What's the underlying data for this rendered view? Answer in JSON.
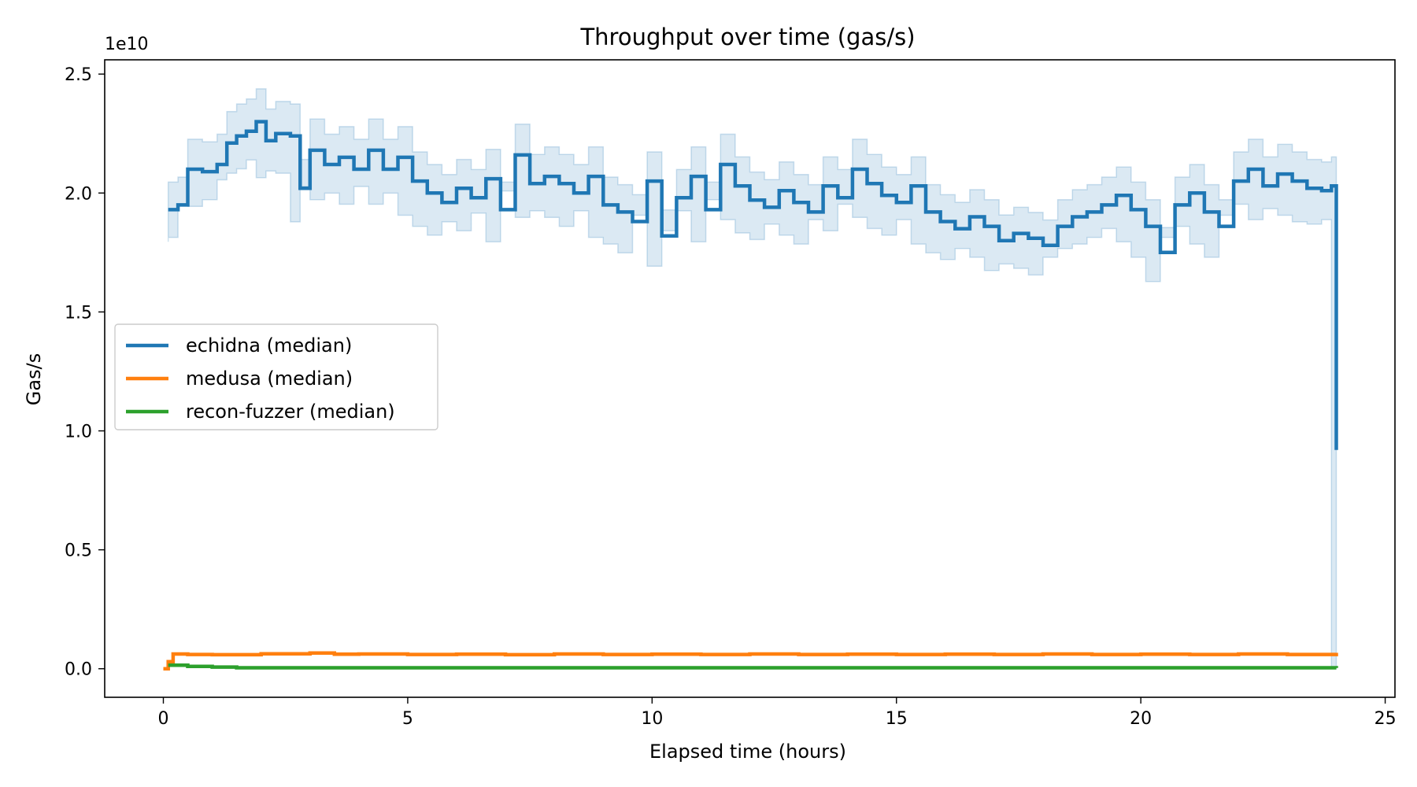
{
  "chart_data": {
    "type": "line",
    "title": "Throughput over time (gas/s)",
    "xlabel": "Elapsed time (hours)",
    "ylabel": "Gas/s",
    "y_offset_label": "1e10",
    "y_scale_factor": 10000000000,
    "xlim": [
      -1.2,
      25.2
    ],
    "ylim": [
      -1200000000.0,
      25600000000.0
    ],
    "x_ticks": [
      0,
      5,
      10,
      15,
      20,
      25
    ],
    "x_tick_labels": [
      "0",
      "5",
      "10",
      "15",
      "20",
      "25"
    ],
    "y_ticks": [
      0,
      5000000000.0,
      10000000000.0,
      15000000000.0,
      20000000000.0,
      25000000000.0
    ],
    "y_tick_labels": [
      "0.0",
      "0.5",
      "1.0",
      "1.5",
      "2.0",
      "2.5"
    ],
    "grid": false,
    "legend_placement": "center-left",
    "series": [
      {
        "name": "echidna (median)",
        "color": "#1f77b4",
        "band_color": "#1f77b4",
        "x": [
          0.1,
          0.3,
          0.5,
          0.8,
          1.1,
          1.3,
          1.5,
          1.7,
          1.9,
          2.1,
          2.3,
          2.6,
          2.8,
          3.0,
          3.3,
          3.6,
          3.9,
          4.2,
          4.5,
          4.8,
          5.1,
          5.4,
          5.7,
          6.0,
          6.3,
          6.6,
          6.9,
          7.2,
          7.5,
          7.8,
          8.1,
          8.4,
          8.7,
          9.0,
          9.3,
          9.6,
          9.9,
          10.2,
          10.5,
          10.8,
          11.1,
          11.4,
          11.7,
          12.0,
          12.3,
          12.6,
          12.9,
          13.2,
          13.5,
          13.8,
          14.1,
          14.4,
          14.7,
          15.0,
          15.3,
          15.6,
          15.9,
          16.2,
          16.5,
          16.8,
          17.1,
          17.4,
          17.7,
          18.0,
          18.3,
          18.6,
          18.9,
          19.2,
          19.5,
          19.8,
          20.1,
          20.4,
          20.7,
          21.0,
          21.3,
          21.6,
          21.9,
          22.2,
          22.5,
          22.8,
          23.1,
          23.4,
          23.7,
          23.9,
          24.0
        ],
        "y": [
          19300000000.0,
          19500000000.0,
          21000000000.0,
          20900000000.0,
          21200000000.0,
          22100000000.0,
          22400000000.0,
          22600000000.0,
          23000000000.0,
          22200000000.0,
          22500000000.0,
          22400000000.0,
          20200000000.0,
          21800000000.0,
          21200000000.0,
          21500000000.0,
          21000000000.0,
          21800000000.0,
          21000000000.0,
          21500000000.0,
          20500000000.0,
          20000000000.0,
          19600000000.0,
          20200000000.0,
          19800000000.0,
          20600000000.0,
          19300000000.0,
          21600000000.0,
          20400000000.0,
          20700000000.0,
          20400000000.0,
          20000000000.0,
          20700000000.0,
          19500000000.0,
          19200000000.0,
          18800000000.0,
          20500000000.0,
          18200000000.0,
          19800000000.0,
          20700000000.0,
          19300000000.0,
          21200000000.0,
          20300000000.0,
          19700000000.0,
          19400000000.0,
          20100000000.0,
          19600000000.0,
          19200000000.0,
          20300000000.0,
          19800000000.0,
          21000000000.0,
          20400000000.0,
          19900000000.0,
          19600000000.0,
          20300000000.0,
          19200000000.0,
          18800000000.0,
          18500000000.0,
          19000000000.0,
          18600000000.0,
          18000000000.0,
          18300000000.0,
          18100000000.0,
          17800000000.0,
          18600000000.0,
          19000000000.0,
          19200000000.0,
          19500000000.0,
          19900000000.0,
          19300000000.0,
          18600000000.0,
          17500000000.0,
          19500000000.0,
          20000000000.0,
          19200000000.0,
          18600000000.0,
          20500000000.0,
          21000000000.0,
          20300000000.0,
          20800000000.0,
          20500000000.0,
          20200000000.0,
          20100000000.0,
          20300000000.0,
          9200000000.0
        ]
      },
      {
        "name": "medusa (median)",
        "color": "#ff7f0e",
        "x": [
          0,
          0.1,
          0.2,
          0.5,
          1.0,
          2.0,
          3.0,
          3.5,
          4.0,
          5.0,
          6.0,
          7.0,
          8.0,
          9.0,
          10.0,
          11.0,
          12.0,
          13.0,
          14.0,
          15.0,
          16.0,
          17.0,
          18.0,
          19.0,
          20.0,
          21.0,
          22.0,
          23.0,
          24.0
        ],
        "y": [
          0,
          300000000.0,
          620000000.0,
          600000000.0,
          590000000.0,
          630000000.0,
          660000000.0,
          610000000.0,
          620000000.0,
          600000000.0,
          610000000.0,
          590000000.0,
          620000000.0,
          600000000.0,
          610000000.0,
          600000000.0,
          620000000.0,
          600000000.0,
          610000000.0,
          600000000.0,
          610000000.0,
          600000000.0,
          620000000.0,
          600000000.0,
          610000000.0,
          600000000.0,
          620000000.0,
          600000000.0,
          670000000.0
        ]
      },
      {
        "name": "recon-fuzzer (median)",
        "color": "#2ca02c",
        "x": [
          0.1,
          0.5,
          1.0,
          1.5,
          24.0
        ],
        "y": [
          150000000.0,
          100000000.0,
          70000000.0,
          40000000.0,
          30000000.0
        ]
      }
    ]
  }
}
